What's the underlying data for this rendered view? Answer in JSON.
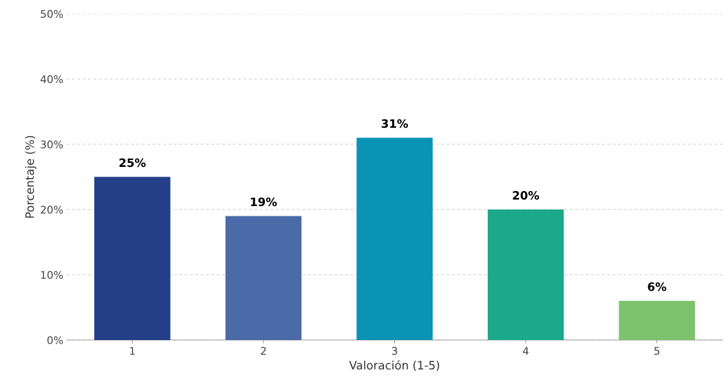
{
  "chart_data": {
    "type": "bar",
    "xlabel": "Valoración (1-5)",
    "ylabel": "Porcentaje (%)",
    "categories": [
      "1",
      "2",
      "3",
      "4",
      "5"
    ],
    "values": [
      25,
      19,
      31,
      20,
      6
    ],
    "colors": [
      "#243f88",
      "#4a6aa8",
      "#0b93b6",
      "#1ba98a",
      "#7cc36b"
    ],
    "value_labels": [
      "25%",
      "19%",
      "31%",
      "20%",
      "6%"
    ],
    "ylim": [
      0,
      50
    ],
    "yticks": [
      {
        "value": 0,
        "label": "0%"
      },
      {
        "value": 10,
        "label": "10%"
      },
      {
        "value": 20,
        "label": "20%"
      },
      {
        "value": 30,
        "label": "30%"
      },
      {
        "value": 40,
        "label": "40%"
      },
      {
        "value": 50,
        "label": "50%"
      }
    ],
    "grid": "y"
  }
}
